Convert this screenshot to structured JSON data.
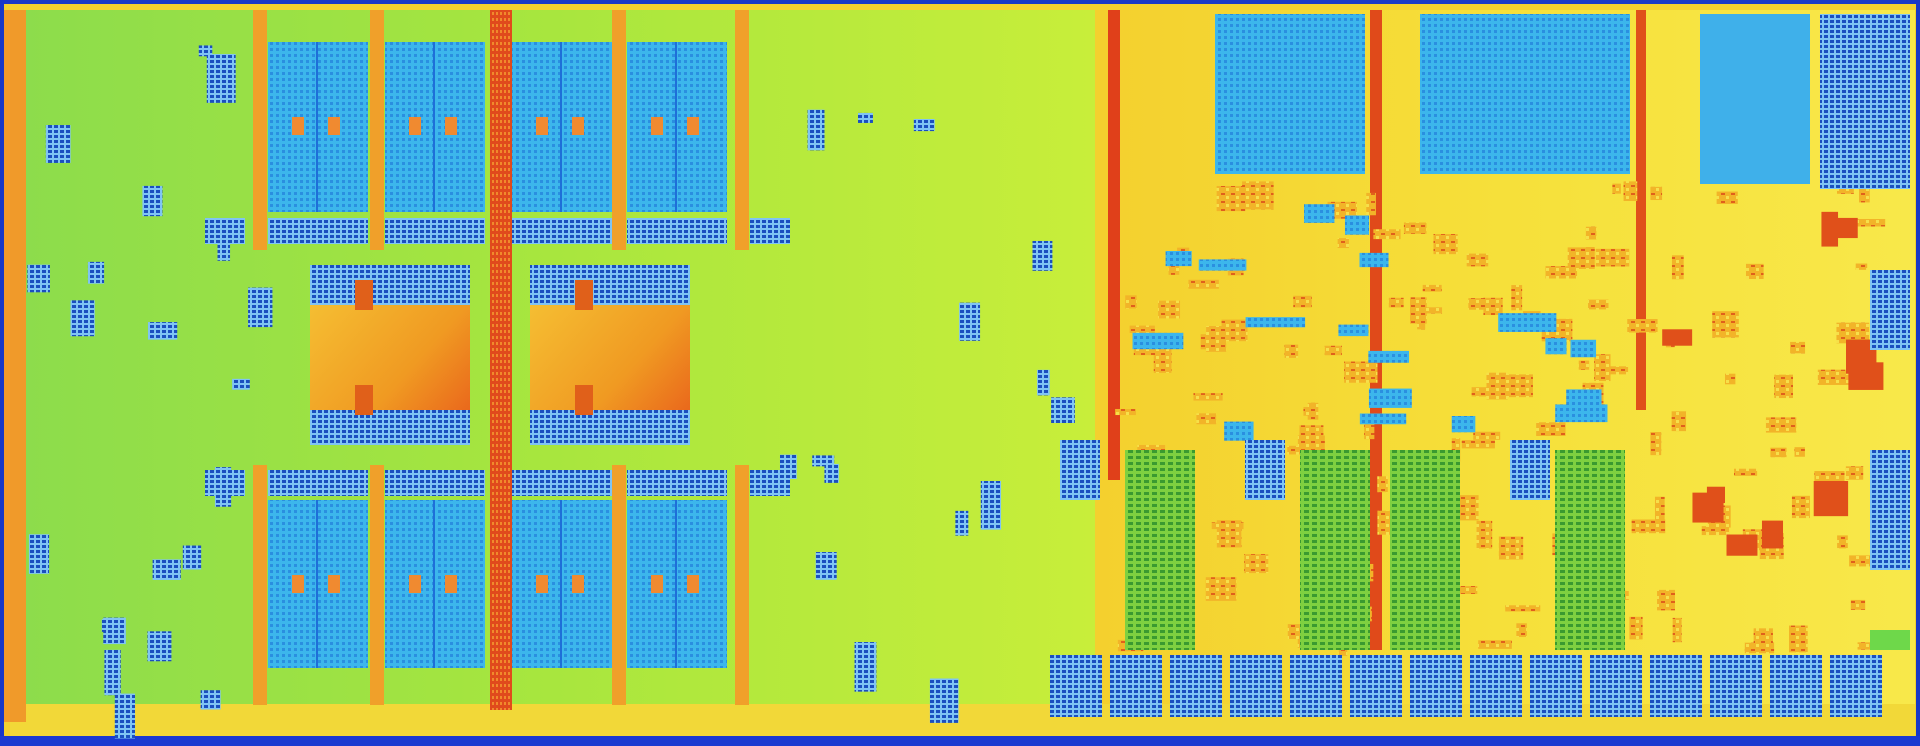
{
  "image": {
    "subject": "processor-die-false-color-micrograph",
    "colors": {
      "frame_blue": "#1430c8",
      "cache_green": "#9be04a",
      "cache_lime": "#c8ee3a",
      "sram_cyan": "#38b8ee",
      "sram_blue": "#1e6fd8",
      "logic_orange": "#f0a020",
      "logic_yellow": "#f2e23a",
      "bus_red": "#e0401a",
      "hot_core": "#f07a18",
      "io_yellow": "#f8e648"
    }
  }
}
